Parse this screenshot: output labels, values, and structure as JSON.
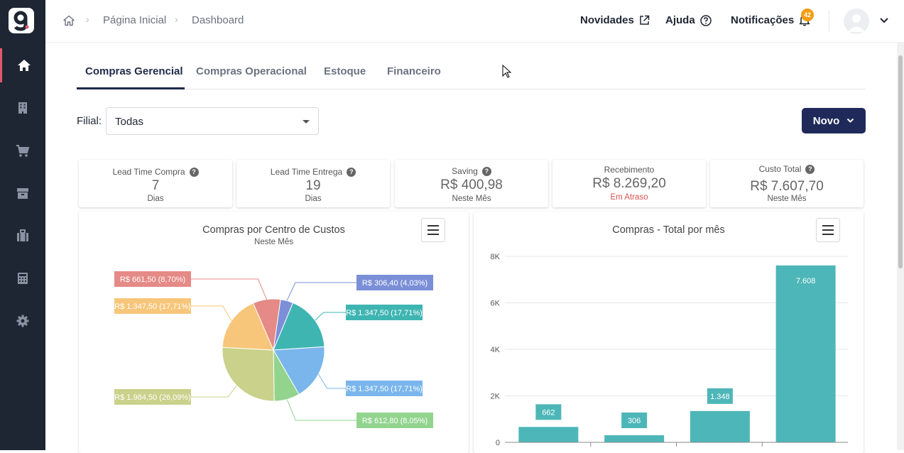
{
  "topbar": {
    "breadcrumb": [
      "Página Inicial",
      "Dashboard"
    ],
    "links": {
      "novidades": "Novidades",
      "ajuda": "Ajuda",
      "notificacoes": "Notificações"
    },
    "notification_count": "42"
  },
  "tabs": [
    "Compras Gerencial",
    "Compras Operacional",
    "Estoque",
    "Financeiro"
  ],
  "filter": {
    "label": "Filial:",
    "value": "Todas"
  },
  "new_button": "Novo",
  "kpis": [
    {
      "title": "Lead Time Compra",
      "value": "7",
      "sub": "Dias",
      "help": true
    },
    {
      "title": "Lead Time Entrega",
      "value": "19",
      "sub": "Dias",
      "help": true
    },
    {
      "title": "Saving",
      "value": "R$ 400,98",
      "sub": "Neste Mês",
      "help": true
    },
    {
      "title": "Recebimento",
      "value": "R$ 8.269,20",
      "sub": "Em Atraso",
      "help": false
    },
    {
      "title": "Custo Total",
      "value": "R$ 7.607,70",
      "sub": "Neste Mês",
      "help": true
    }
  ],
  "charts": {
    "pie_title": "Compras por Centro de Custos",
    "pie_subtitle": "Neste Mês",
    "bar_title": "Compras - Total por mês"
  },
  "colors": {
    "sidebar": "#1f2633",
    "accent": "#e2596b",
    "primary": "#1f2a5a",
    "bar": "#4db6b8"
  },
  "chart_data": [
    {
      "type": "pie",
      "title": "Compras por Centro de Custos",
      "subtitle": "Neste Mês",
      "slices": [
        {
          "label": "R$ 306,40 (4,03%)",
          "value": 306.4,
          "color": "#7b8fd8"
        },
        {
          "label": "R$ 1.347,50 (17,71%)",
          "value": 1347.5,
          "color": "#3fb5b2"
        },
        {
          "label": "R$ 1.347,50 (17,71%)",
          "value": 1347.5,
          "color": "#7ab6ec"
        },
        {
          "label": "R$ 612,80 (8,05%)",
          "value": 612.8,
          "color": "#92d48e"
        },
        {
          "label": "R$ 1.984,50 (26,09%)",
          "value": 1984.5,
          "color": "#c9d18a"
        },
        {
          "label": "R$ 1.347,50 (17,71%)",
          "value": 1347.5,
          "color": "#f7c67a"
        },
        {
          "label": "R$ 661,50 (8,70%)",
          "value": 661.5,
          "color": "#e58a86"
        }
      ]
    },
    {
      "type": "bar",
      "title": "Compras - Total por mês",
      "values": [
        662,
        306,
        1348,
        7608
      ],
      "data_labels": [
        "662",
        "306",
        "1.348",
        "7.608"
      ],
      "ylim": [
        0,
        8000
      ],
      "yticks": [
        "0",
        "2K",
        "4K",
        "6K",
        "8K"
      ],
      "grid": true
    }
  ]
}
